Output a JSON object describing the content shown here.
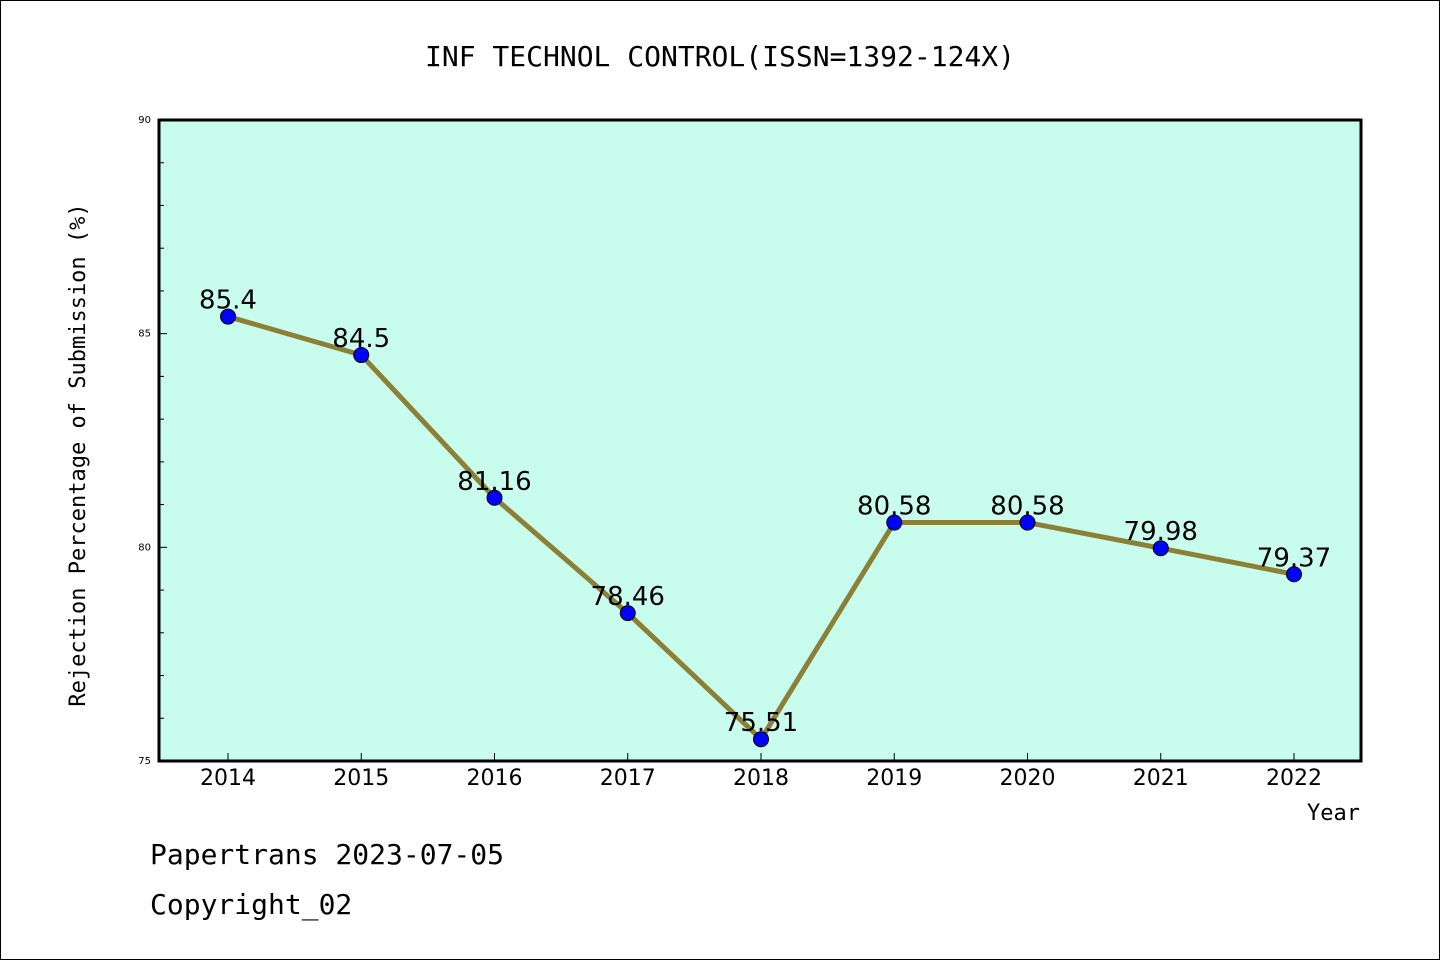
{
  "chart_data": {
    "type": "line",
    "title": "INF TECHNOL CONTROL(ISSN=1392-124X)",
    "xlabel": "Year",
    "ylabel": "Rejection Percentage of Submission (%)",
    "categories": [
      "2014",
      "2015",
      "2016",
      "2017",
      "2018",
      "2019",
      "2020",
      "2021",
      "2022"
    ],
    "values": [
      85.4,
      84.5,
      81.16,
      78.46,
      75.51,
      80.58,
      80.58,
      79.98,
      79.37
    ],
    "data_labels": [
      "85.4",
      "84.5",
      "81.16",
      "78.46",
      "75.51",
      "80.58",
      "80.58",
      "79.98",
      "79.37"
    ],
    "ylim": [
      75,
      90
    ],
    "yticks": [
      75,
      80,
      85,
      90
    ],
    "ytick_labels": [
      "75",
      "80",
      "85",
      "90"
    ],
    "grid": false,
    "legend": "none",
    "colors": {
      "plot_background": "#c8fcec",
      "line": "#8b8035",
      "marker": "#0000ff",
      "axis": "#000000"
    }
  },
  "footer": {
    "line1": "Papertrans 2023-07-05",
    "line2": "Copyright_02"
  }
}
